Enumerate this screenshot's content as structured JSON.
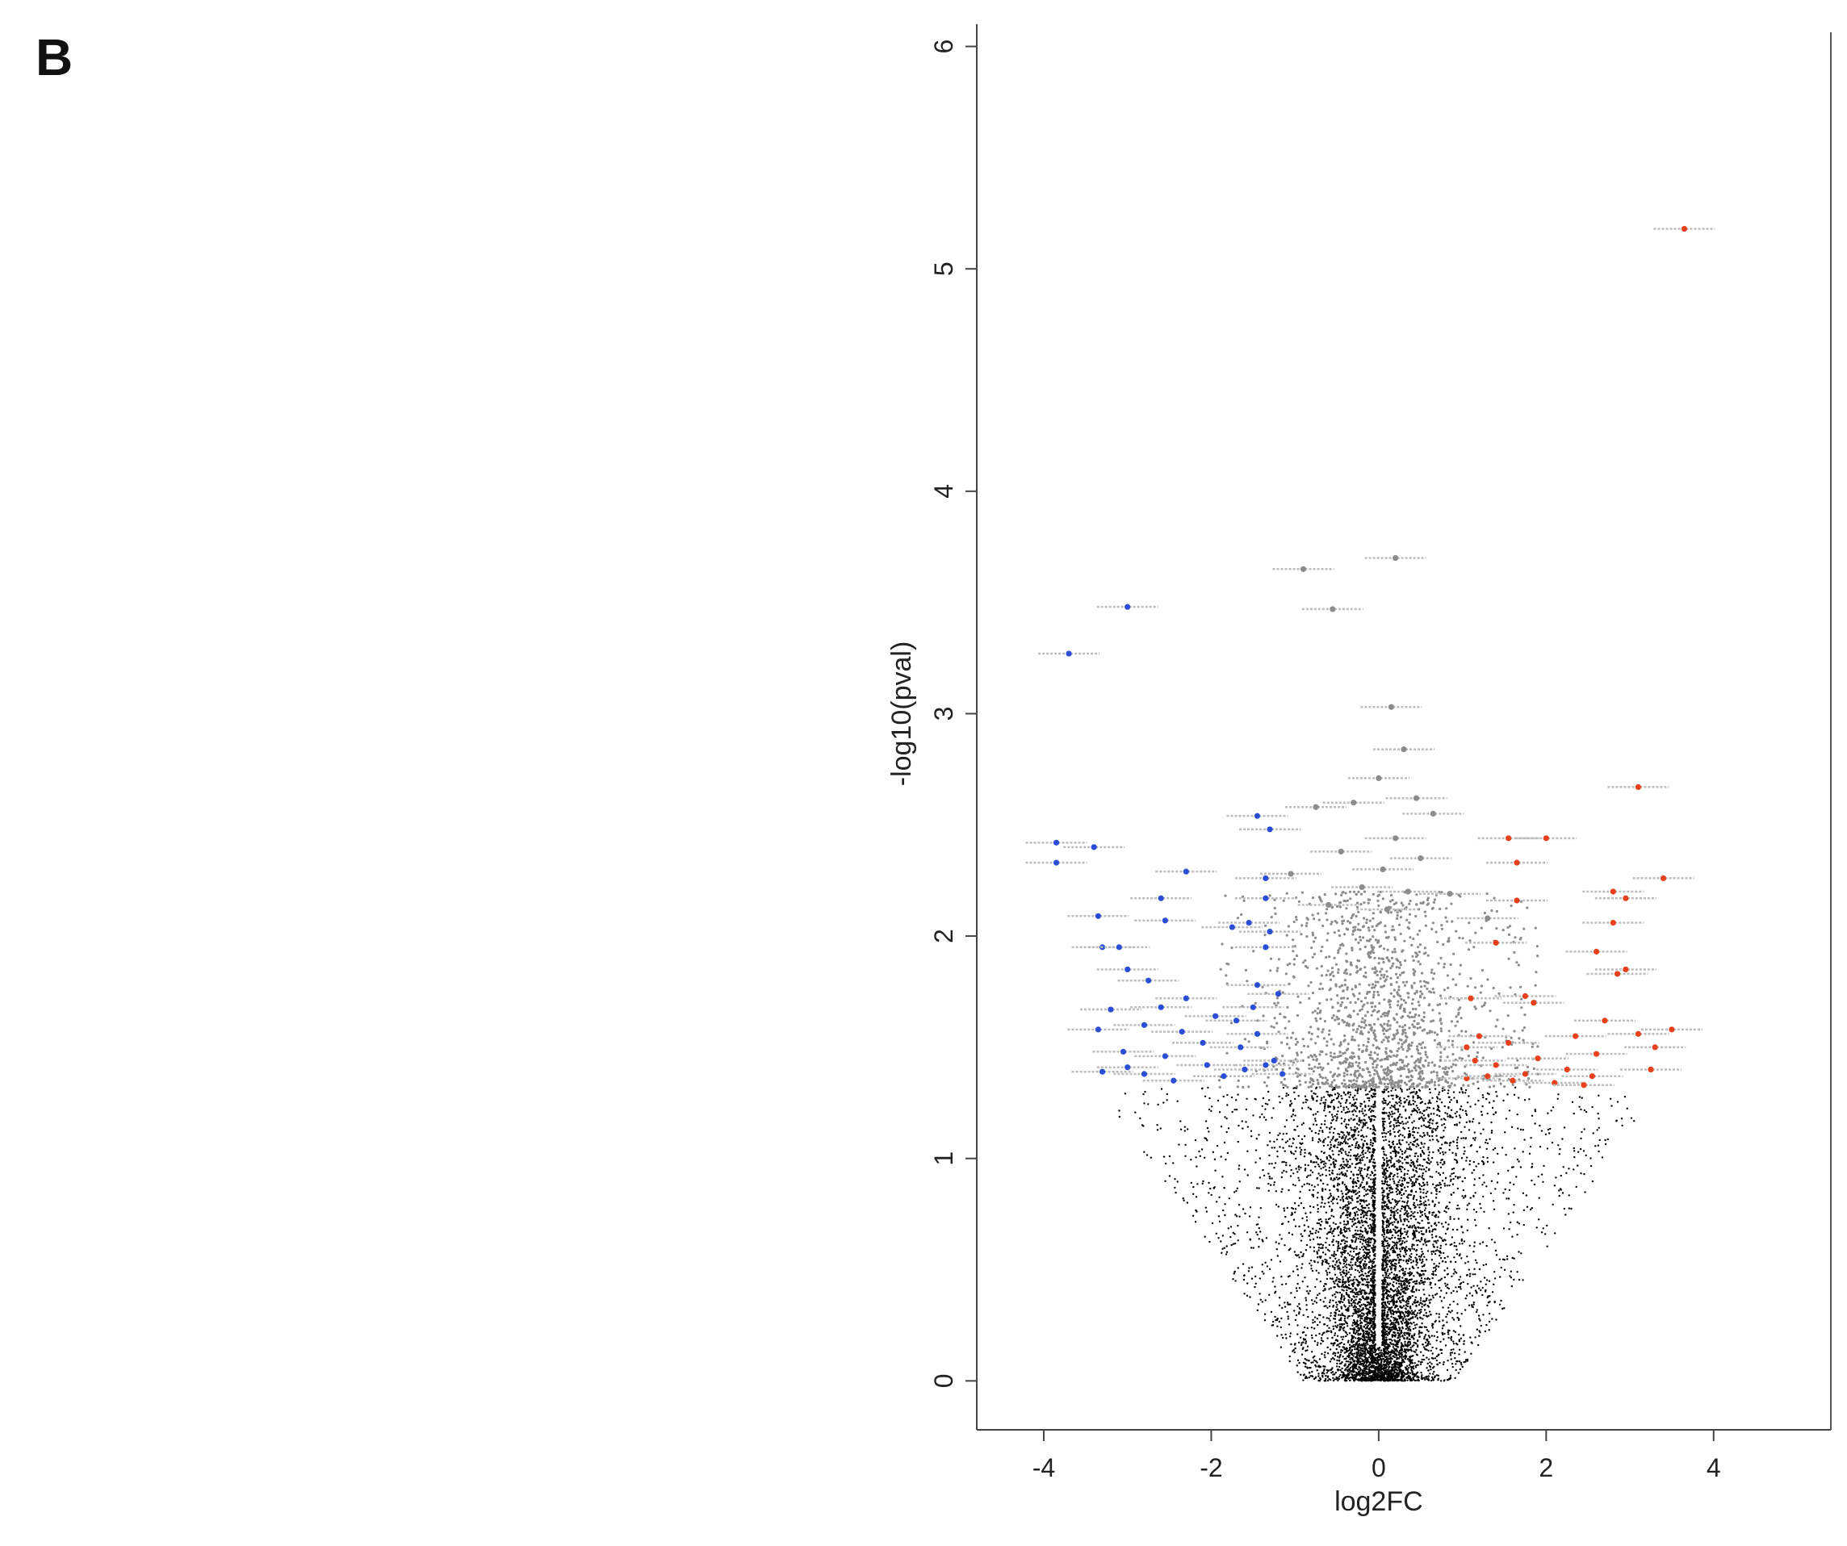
{
  "panel_label": "B",
  "chart_data": {
    "type": "scatter",
    "title": "",
    "xlabel": "log2FC",
    "ylabel": "-log10(pval)",
    "xlim": [
      -4.8,
      5.4
    ],
    "ylim": [
      -0.22,
      6.1
    ],
    "xticks": [
      -4,
      -2,
      0,
      2,
      4
    ],
    "xtick_labels": [
      "-4",
      "-2",
      "0",
      "2",
      "4"
    ],
    "yticks": [
      0,
      1,
      2,
      3,
      4,
      5,
      6
    ],
    "ytick_labels": [
      "0",
      "1",
      "2",
      "3",
      "4",
      "5",
      "6"
    ],
    "grid": false,
    "legend": "none",
    "colors": {
      "nonsignificant": "#000000",
      "significant": "#8c8c8c",
      "down": "#2a4fd6",
      "up": "#e8401c",
      "axis": "#444444"
    },
    "series": [
      {
        "color_key": "up",
        "points": [
          [
            3.65,
            5.18
          ],
          [
            3.1,
            2.67
          ],
          [
            2.0,
            2.44
          ],
          [
            1.55,
            2.44
          ],
          [
            1.65,
            2.33
          ],
          [
            3.4,
            2.26
          ],
          [
            1.65,
            2.16
          ],
          [
            2.8,
            2.2
          ],
          [
            2.95,
            2.17
          ],
          [
            1.4,
            1.97
          ],
          [
            2.8,
            2.06
          ],
          [
            2.6,
            1.93
          ],
          [
            2.95,
            1.85
          ],
          [
            2.85,
            1.83
          ],
          [
            1.1,
            1.72
          ],
          [
            1.75,
            1.73
          ],
          [
            1.85,
            1.7
          ],
          [
            2.7,
            1.62
          ],
          [
            3.5,
            1.58
          ],
          [
            3.1,
            1.56
          ],
          [
            2.35,
            1.55
          ],
          [
            1.2,
            1.55
          ],
          [
            1.55,
            1.52
          ],
          [
            1.05,
            1.5
          ],
          [
            3.3,
            1.5
          ],
          [
            2.6,
            1.47
          ],
          [
            1.9,
            1.45
          ],
          [
            1.15,
            1.44
          ],
          [
            1.4,
            1.42
          ],
          [
            2.25,
            1.4
          ],
          [
            1.75,
            1.38
          ],
          [
            1.05,
            1.36
          ],
          [
            2.55,
            1.37
          ],
          [
            3.25,
            1.4
          ],
          [
            1.6,
            1.35
          ],
          [
            2.1,
            1.34
          ],
          [
            1.3,
            1.37
          ],
          [
            2.45,
            1.33
          ]
        ]
      },
      {
        "color_key": "down",
        "points": [
          [
            -3.0,
            3.48
          ],
          [
            -3.7,
            3.27
          ],
          [
            -3.85,
            2.42
          ],
          [
            -3.4,
            2.4
          ],
          [
            -3.85,
            2.33
          ],
          [
            -2.3,
            2.29
          ],
          [
            -1.45,
            2.54
          ],
          [
            -1.3,
            2.48
          ],
          [
            -1.35,
            2.26
          ],
          [
            -2.6,
            2.17
          ],
          [
            -1.35,
            2.17
          ],
          [
            -3.35,
            2.09
          ],
          [
            -2.55,
            2.07
          ],
          [
            -1.55,
            2.06
          ],
          [
            -1.75,
            2.04
          ],
          [
            -1.3,
            2.02
          ],
          [
            -3.3,
            1.95
          ],
          [
            -3.1,
            1.95
          ],
          [
            -1.35,
            1.95
          ],
          [
            -3.0,
            1.85
          ],
          [
            -2.75,
            1.8
          ],
          [
            -1.45,
            1.78
          ],
          [
            -2.3,
            1.72
          ],
          [
            -1.2,
            1.74
          ],
          [
            -1.5,
            1.68
          ],
          [
            -2.6,
            1.68
          ],
          [
            -3.2,
            1.67
          ],
          [
            -1.95,
            1.64
          ],
          [
            -1.7,
            1.62
          ],
          [
            -2.8,
            1.6
          ],
          [
            -3.35,
            1.58
          ],
          [
            -2.35,
            1.57
          ],
          [
            -1.45,
            1.56
          ],
          [
            -2.1,
            1.52
          ],
          [
            -1.65,
            1.5
          ],
          [
            -3.05,
            1.48
          ],
          [
            -2.55,
            1.46
          ],
          [
            -1.25,
            1.44
          ],
          [
            -2.05,
            1.42
          ],
          [
            -1.6,
            1.4
          ],
          [
            -3.3,
            1.39
          ],
          [
            -2.8,
            1.38
          ],
          [
            -1.85,
            1.37
          ],
          [
            -1.15,
            1.38
          ],
          [
            -2.45,
            1.35
          ],
          [
            -3.0,
            1.41
          ],
          [
            -1.35,
            1.42
          ]
        ]
      },
      {
        "color_key": "significant",
        "points": [
          [
            -0.9,
            3.65
          ],
          [
            0.2,
            3.7
          ],
          [
            -0.55,
            3.47
          ],
          [
            0.15,
            3.03
          ],
          [
            0.3,
            2.84
          ],
          [
            0.0,
            2.71
          ],
          [
            0.45,
            2.62
          ],
          [
            -0.3,
            2.6
          ],
          [
            0.65,
            2.55
          ],
          [
            -0.75,
            2.58
          ],
          [
            0.2,
            2.44
          ],
          [
            -0.45,
            2.38
          ],
          [
            0.05,
            2.3
          ],
          [
            -1.05,
            2.28
          ],
          [
            0.5,
            2.35
          ],
          [
            -0.2,
            2.22
          ],
          [
            0.35,
            2.2
          ],
          [
            0.85,
            2.19
          ],
          [
            -0.6,
            2.14
          ],
          [
            0.1,
            2.12
          ],
          [
            1.3,
            2.08
          ]
        ]
      }
    ],
    "distributions": [
      {
        "color_key": "significant",
        "count": 1500,
        "y_range": [
          1.32,
          2.2
        ],
        "x_spread": 0.55,
        "wide_fraction": 0.22,
        "wide_x_spread": 1.9
      },
      {
        "color_key": "nonsignificant",
        "count": 7000,
        "y_range": [
          0.0,
          1.32
        ],
        "x_spread": 0.38,
        "wide_fraction": 0.25,
        "wide_x_spread": 3.1
      }
    ]
  }
}
